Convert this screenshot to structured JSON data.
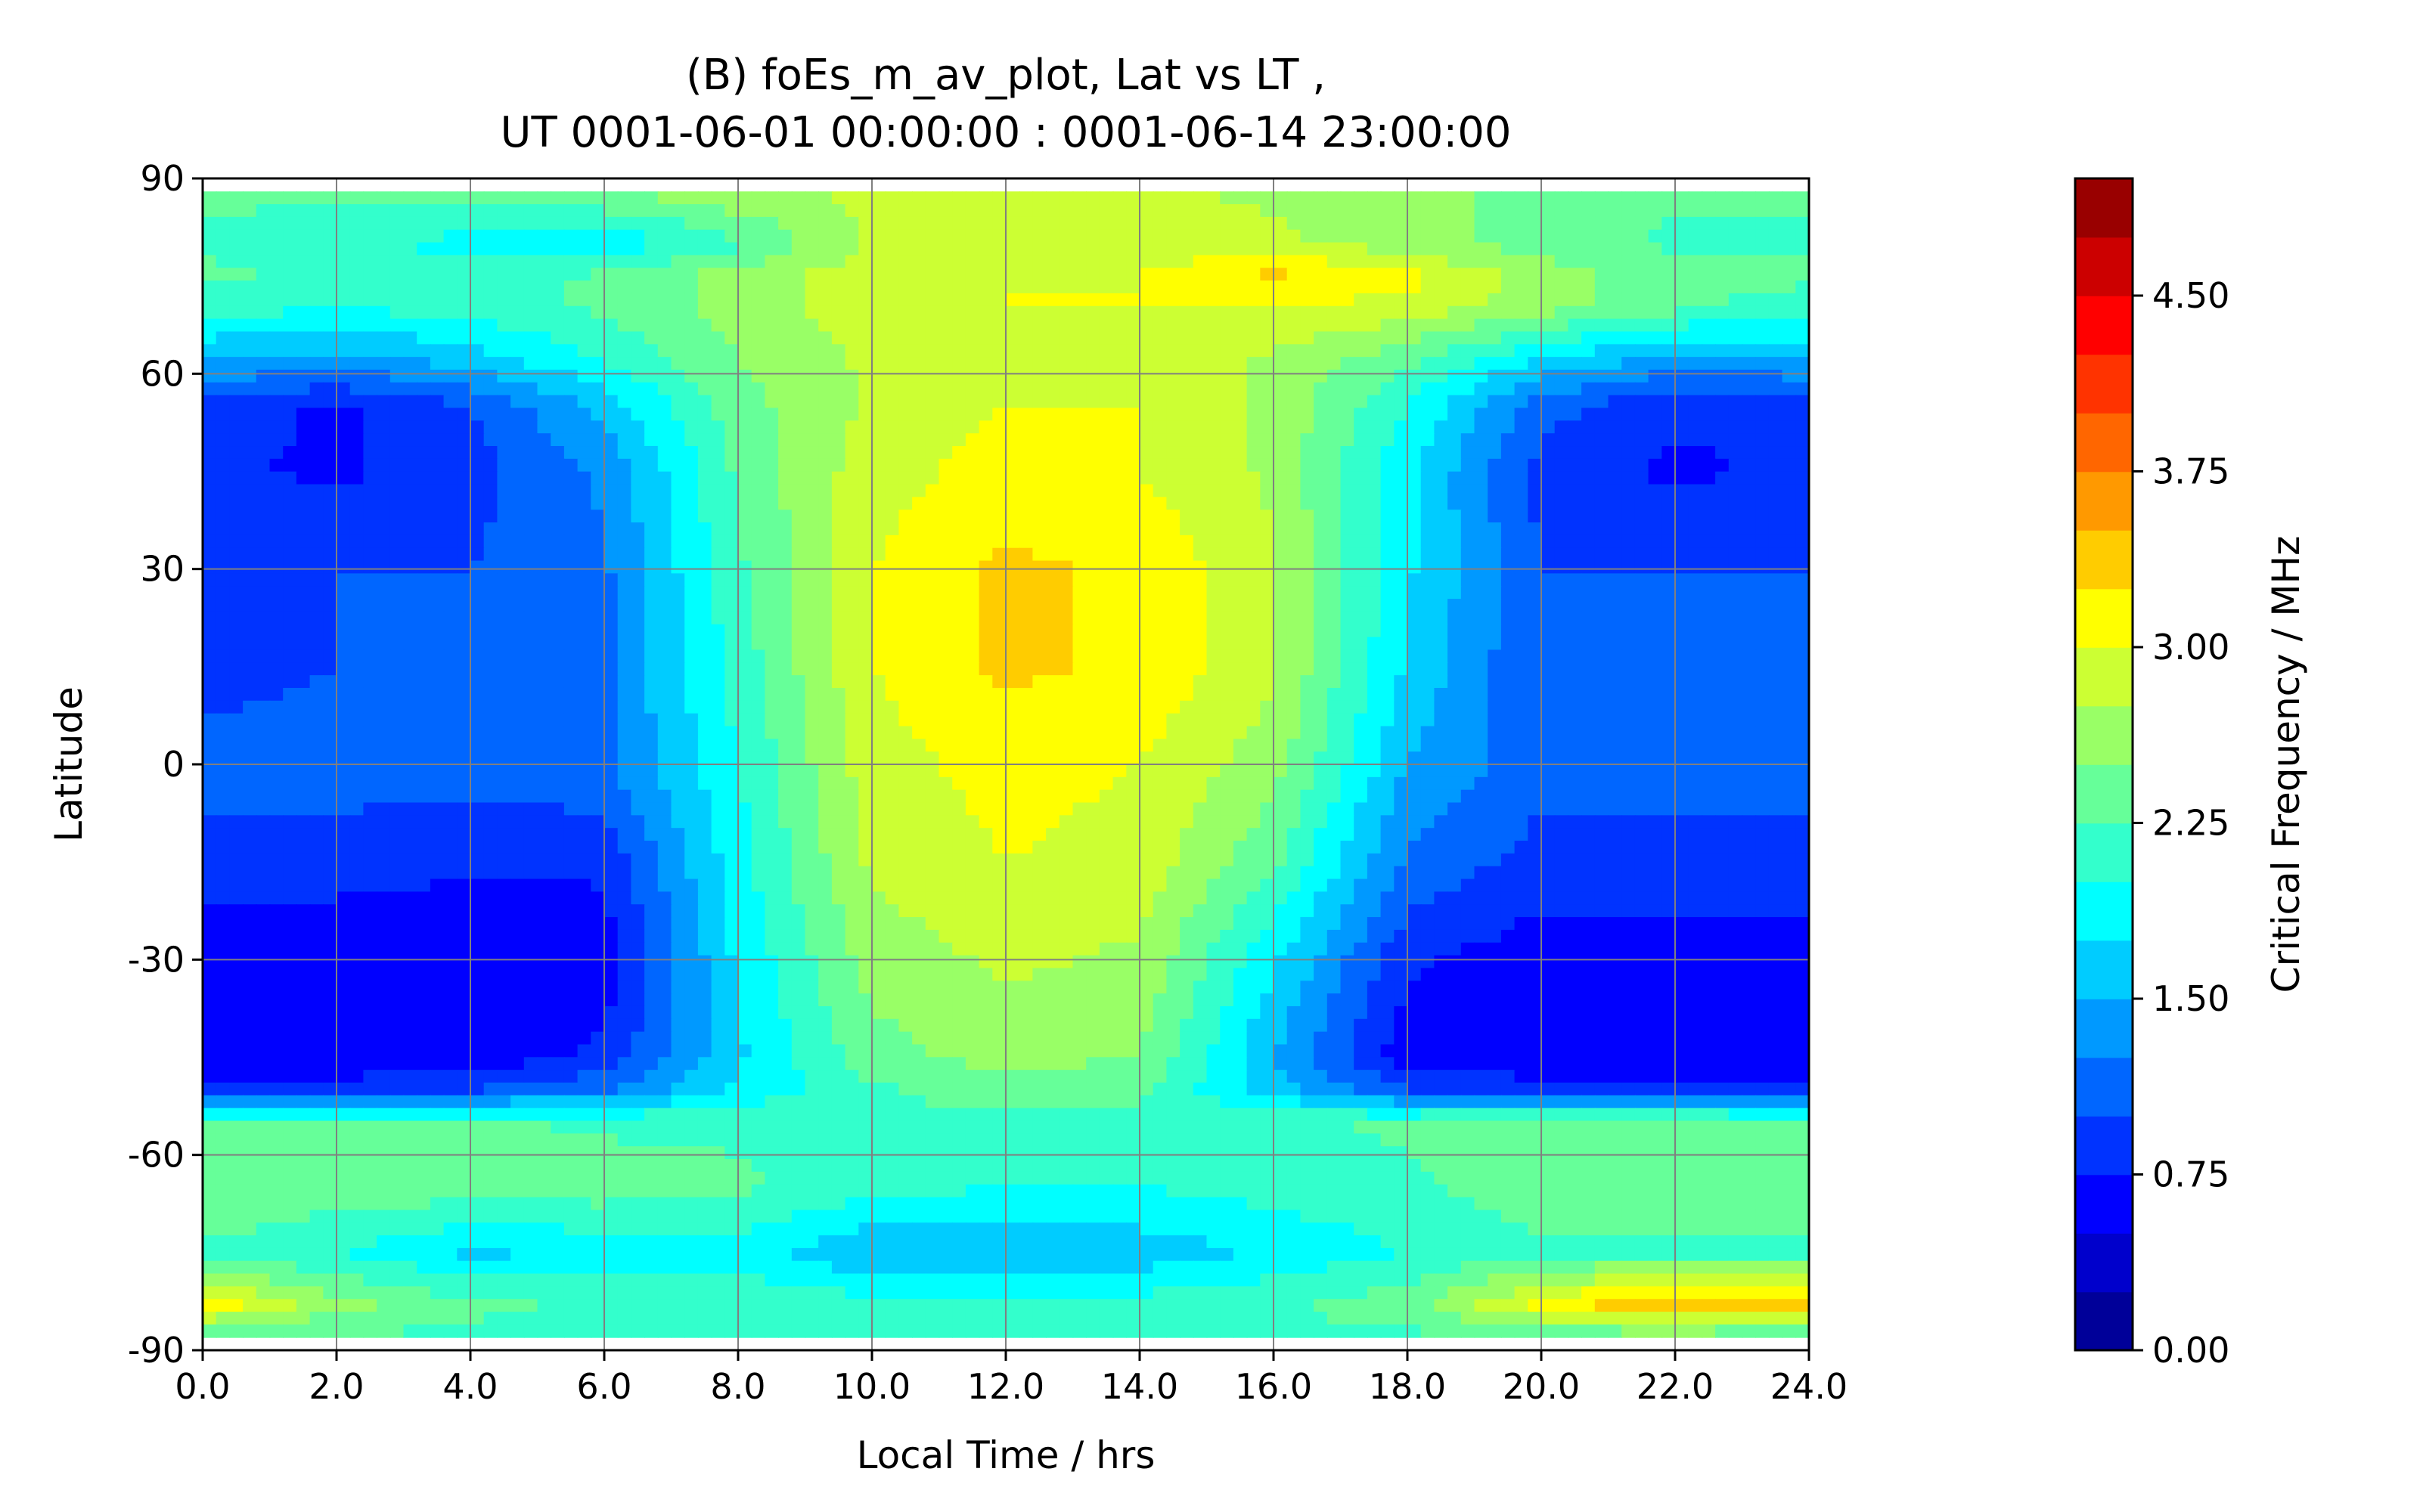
{
  "chart_data": {
    "type": "heatmap",
    "title": [
      "(B) foEs_m_av_plot, Lat vs LT ,",
      "UT 0001-06-01 00:00:00 : 0001-06-14 23:00:00"
    ],
    "xlabel": "Local Time / hrs",
    "ylabel": "Latitude",
    "xlim": [
      0,
      24
    ],
    "ylim": [
      -90,
      90
    ],
    "x_ticks": [
      "0.0",
      "2.0",
      "4.0",
      "6.0",
      "8.0",
      "10.0",
      "12.0",
      "14.0",
      "16.0",
      "18.0",
      "20.0",
      "22.0",
      "24.0"
    ],
    "y_ticks": [
      "90",
      "60",
      "30",
      "0",
      "-30",
      "-60",
      "-90"
    ],
    "grid": true,
    "colorbar": {
      "label": "Critical Frequency / MHz",
      "range": [
        0,
        5
      ],
      "ticks": [
        "0.00",
        "0.75",
        "1.50",
        "2.25",
        "3.00",
        "3.75",
        "4.50"
      ],
      "levels": 20,
      "colormap": "jet"
    },
    "lt_samples": [
      0,
      2,
      4,
      6,
      8,
      10,
      12,
      14,
      16,
      18,
      20,
      22,
      24
    ],
    "lat_samples": [
      88,
      80,
      75,
      70,
      62,
      55,
      45,
      30,
      15,
      0,
      -15,
      -30,
      -45,
      -50,
      -55,
      -65,
      -75,
      -83,
      -88
    ],
    "values": [
      [
        2.3,
        2.3,
        2.3,
        2.5,
        2.7,
        2.8,
        2.8,
        2.8,
        2.7,
        2.6,
        2.4,
        2.3,
        2.3
      ],
      [
        2.2,
        2.1,
        1.9,
        1.8,
        2.2,
        2.8,
        2.9,
        2.9,
        2.8,
        2.6,
        2.4,
        2.2,
        2.2
      ],
      [
        2.3,
        2.2,
        2.1,
        2.3,
        2.6,
        2.9,
        3.0,
        3.0,
        3.3,
        3.1,
        2.6,
        2.4,
        2.3
      ],
      [
        2.1,
        2.0,
        2.1,
        2.3,
        2.6,
        2.9,
        3.0,
        3.0,
        3.0,
        2.9,
        2.6,
        2.3,
        2.1
      ],
      [
        1.5,
        1.4,
        1.6,
        2.0,
        2.5,
        2.8,
        3.0,
        2.9,
        2.7,
        2.3,
        1.7,
        1.4,
        1.5
      ],
      [
        0.9,
        0.7,
        1.0,
        1.6,
        2.4,
        2.8,
        3.0,
        3.0,
        2.7,
        2.0,
        1.1,
        0.8,
        0.8
      ],
      [
        0.8,
        0.7,
        0.9,
        1.3,
        2.3,
        2.9,
        3.1,
        3.0,
        2.7,
        1.8,
        0.9,
        0.7,
        0.8
      ],
      [
        1.0,
        1.0,
        1.0,
        1.2,
        2.2,
        3.0,
        3.3,
        3.2,
        2.8,
        1.8,
        1.0,
        1.0,
        1.0
      ],
      [
        0.9,
        1.0,
        1.0,
        1.2,
        2.1,
        3.0,
        3.3,
        3.2,
        2.8,
        1.7,
        1.0,
        1.0,
        1.0
      ],
      [
        1.1,
        1.1,
        1.1,
        1.2,
        2.0,
        2.9,
        3.1,
        3.0,
        2.6,
        1.5,
        1.1,
        1.1,
        1.1
      ],
      [
        0.9,
        0.9,
        0.8,
        0.8,
        1.9,
        2.8,
        3.0,
        2.9,
        2.3,
        1.2,
        0.9,
        0.9,
        0.9
      ],
      [
        0.6,
        0.5,
        0.5,
        0.6,
        1.8,
        2.6,
        2.8,
        2.7,
        1.8,
        0.8,
        0.6,
        0.6,
        0.6
      ],
      [
        0.5,
        0.5,
        0.6,
        0.8,
        1.7,
        2.4,
        2.6,
        2.5,
        1.5,
        0.6,
        0.5,
        0.5,
        0.5
      ],
      [
        0.9,
        0.9,
        1.0,
        1.2,
        1.8,
        2.2,
        2.4,
        2.3,
        1.6,
        1.0,
        0.9,
        0.9,
        0.9
      ],
      [
        2.3,
        2.3,
        2.3,
        2.2,
        2.2,
        2.2,
        2.2,
        2.2,
        2.2,
        2.3,
        2.5,
        2.4,
        2.3
      ],
      [
        2.5,
        2.4,
        2.4,
        2.4,
        2.3,
        2.1,
        2.0,
        2.0,
        2.1,
        2.2,
        2.4,
        2.4,
        2.5
      ],
      [
        2.2,
        2.0,
        1.7,
        1.8,
        1.9,
        1.5,
        1.5,
        1.6,
        1.8,
        2.0,
        2.2,
        2.2,
        2.2
      ],
      [
        3.2,
        2.6,
        2.3,
        2.2,
        2.2,
        2.1,
        2.1,
        2.1,
        2.2,
        2.4,
        3.1,
        3.5,
        3.3
      ],
      [
        2.2,
        2.2,
        2.2,
        2.2,
        2.2,
        2.2,
        2.2,
        2.2,
        2.2,
        2.2,
        2.3,
        2.3,
        2.2
      ]
    ]
  }
}
